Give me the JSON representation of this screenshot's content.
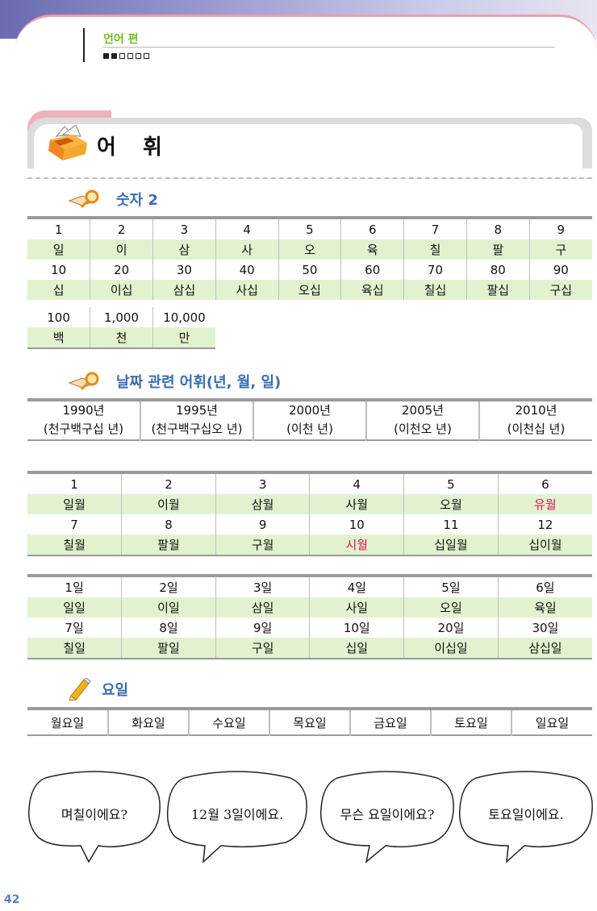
{
  "header": {
    "section": "언어 편",
    "progress_filled": 2,
    "progress_total": 6
  },
  "vocab_title": "어 휘",
  "numbers": {
    "heading": "숫자 2",
    "rows": [
      {
        "nums": [
          "1",
          "2",
          "3",
          "4",
          "5",
          "6",
          "7",
          "8",
          "9"
        ],
        "words": [
          "일",
          "이",
          "삼",
          "사",
          "오",
          "육",
          "칠",
          "팔",
          "구"
        ]
      },
      {
        "nums": [
          "10",
          "20",
          "30",
          "40",
          "50",
          "60",
          "70",
          "80",
          "90"
        ],
        "words": [
          "십",
          "이십",
          "삼십",
          "사십",
          "오십",
          "육십",
          "칠십",
          "팔십",
          "구십"
        ]
      },
      {
        "nums": [
          "100",
          "1,000",
          "10,000"
        ],
        "words": [
          "백",
          "천",
          "만"
        ]
      }
    ]
  },
  "dates": {
    "heading": "날짜 관련 어휘(년, 월, 일)",
    "years": [
      {
        "year": "1990년",
        "reading": "(천구백구십 년)"
      },
      {
        "year": "1995년",
        "reading": "(천구백구십오 년)"
      },
      {
        "year": "2000년",
        "reading": "(이천 년)"
      },
      {
        "year": "2005년",
        "reading": "(이천오 년)"
      },
      {
        "year": "2010년",
        "reading": "(이천십 년)"
      }
    ],
    "months": [
      {
        "nums": [
          "1",
          "2",
          "3",
          "4",
          "5",
          "6"
        ],
        "words": [
          "일월",
          "이월",
          "삼월",
          "사월",
          "오월",
          "유월"
        ]
      },
      {
        "nums": [
          "7",
          "8",
          "9",
          "10",
          "11",
          "12"
        ],
        "words": [
          "칠월",
          "팔월",
          "구월",
          "시월",
          "십일월",
          "십이월"
        ]
      }
    ],
    "days": [
      {
        "nums": [
          "1일",
          "2일",
          "3일",
          "4일",
          "5일",
          "6일"
        ],
        "words": [
          "일일",
          "이일",
          "삼일",
          "사일",
          "오일",
          "육일"
        ]
      },
      {
        "nums": [
          "7일",
          "8일",
          "9일",
          "10일",
          "20일",
          "30일"
        ],
        "words": [
          "칠일",
          "팔일",
          "구일",
          "십일",
          "이십일",
          "삼십일"
        ]
      }
    ]
  },
  "weekdays": {
    "heading": "요일",
    "items": [
      "월요일",
      "화요일",
      "수요일",
      "목요일",
      "금요일",
      "토요일",
      "일요일"
    ]
  },
  "dialogue": [
    "며칠이에요?",
    "12월 3일이에요.",
    "무슨 요일이에요?",
    "토요일이에요."
  ],
  "page_number": "42",
  "colors": {
    "green_row": "#e2f2cf",
    "highlight": "#d8145a",
    "heading_blue": "#3a6db0",
    "section_green": "#6bbd1e"
  }
}
